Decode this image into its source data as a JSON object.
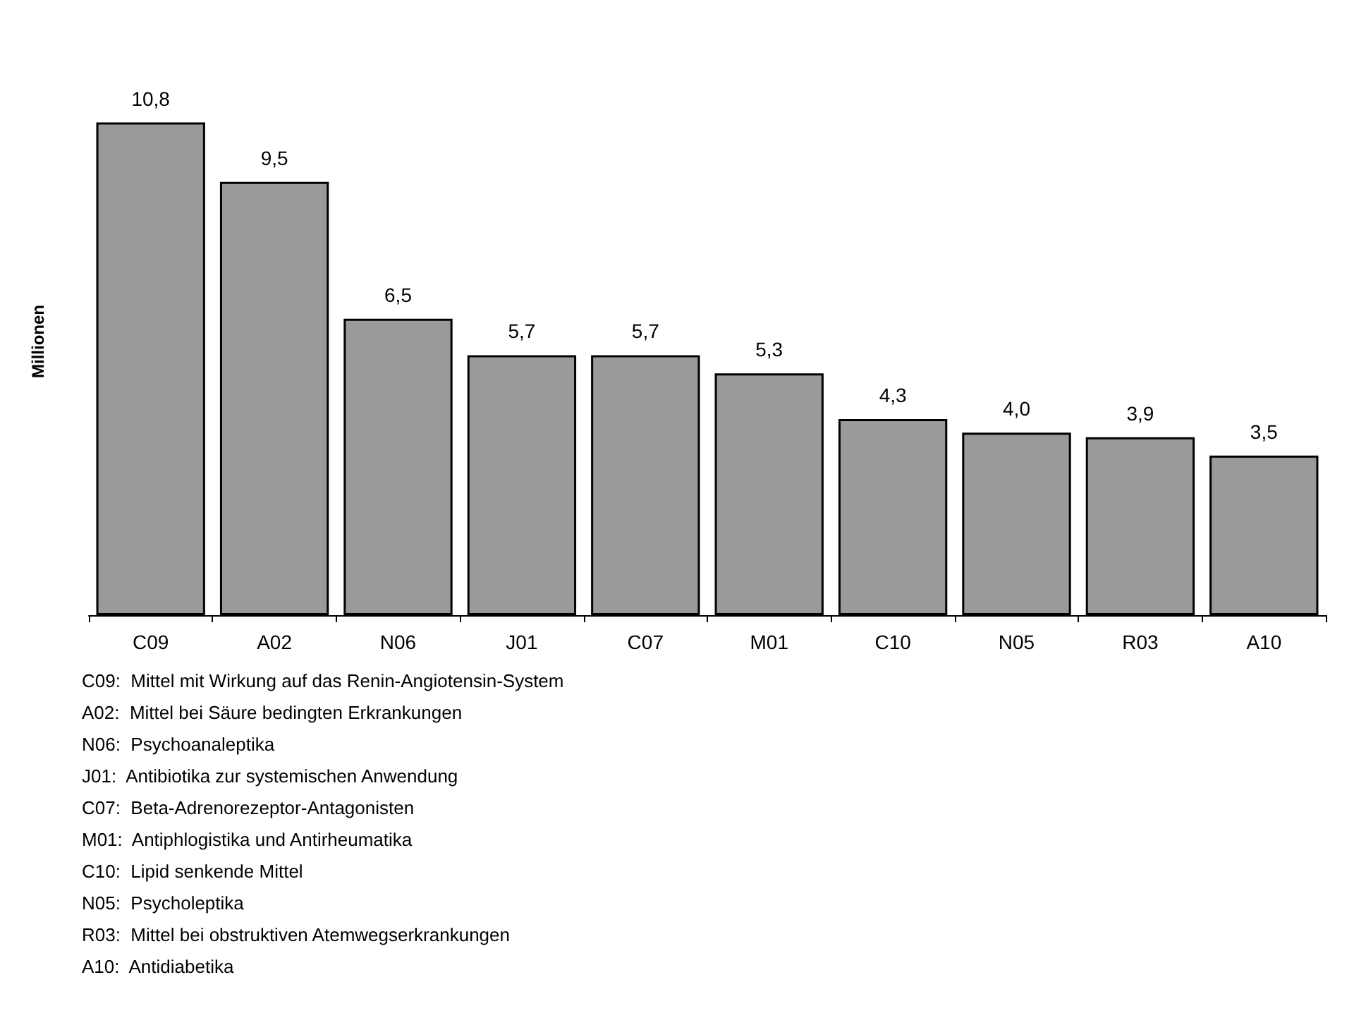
{
  "chart_data": {
    "type": "bar",
    "ylabel": "Millionen",
    "categories": [
      "C09",
      "A02",
      "N06",
      "J01",
      "C07",
      "M01",
      "C10",
      "N05",
      "R03",
      "A10"
    ],
    "values": [
      10.8,
      9.5,
      6.5,
      5.7,
      5.7,
      5.3,
      4.3,
      4.0,
      3.9,
      3.5
    ],
    "value_labels": [
      "10,8",
      "9,5",
      "6,5",
      "5,7",
      "5,7",
      "5,3",
      "4,3",
      "4,0",
      "3,9",
      "3,5"
    ],
    "color": "#9a9a9a",
    "annotations": [
      "C09:  Mittel mit Wirkung auf das Renin-Angiotensin-System",
      "A02:  Mittel bei Säure bedingten Erkrankungen",
      "N06:  Psychoanaleptika",
      "J01:  Antibiotika zur systemischen Anwendung",
      "C07:  Beta-Adrenorezeptor-Antagonisten",
      "M01:  Antiphlogistika und Antirheumatika",
      "C10:  Lipid senkende Mittel",
      "N05:  Psycholeptika",
      "R03:  Mittel bei obstruktiven Atemwegserkrankungen",
      "A10:  Antidiabetika"
    ],
    "grid": false
  }
}
